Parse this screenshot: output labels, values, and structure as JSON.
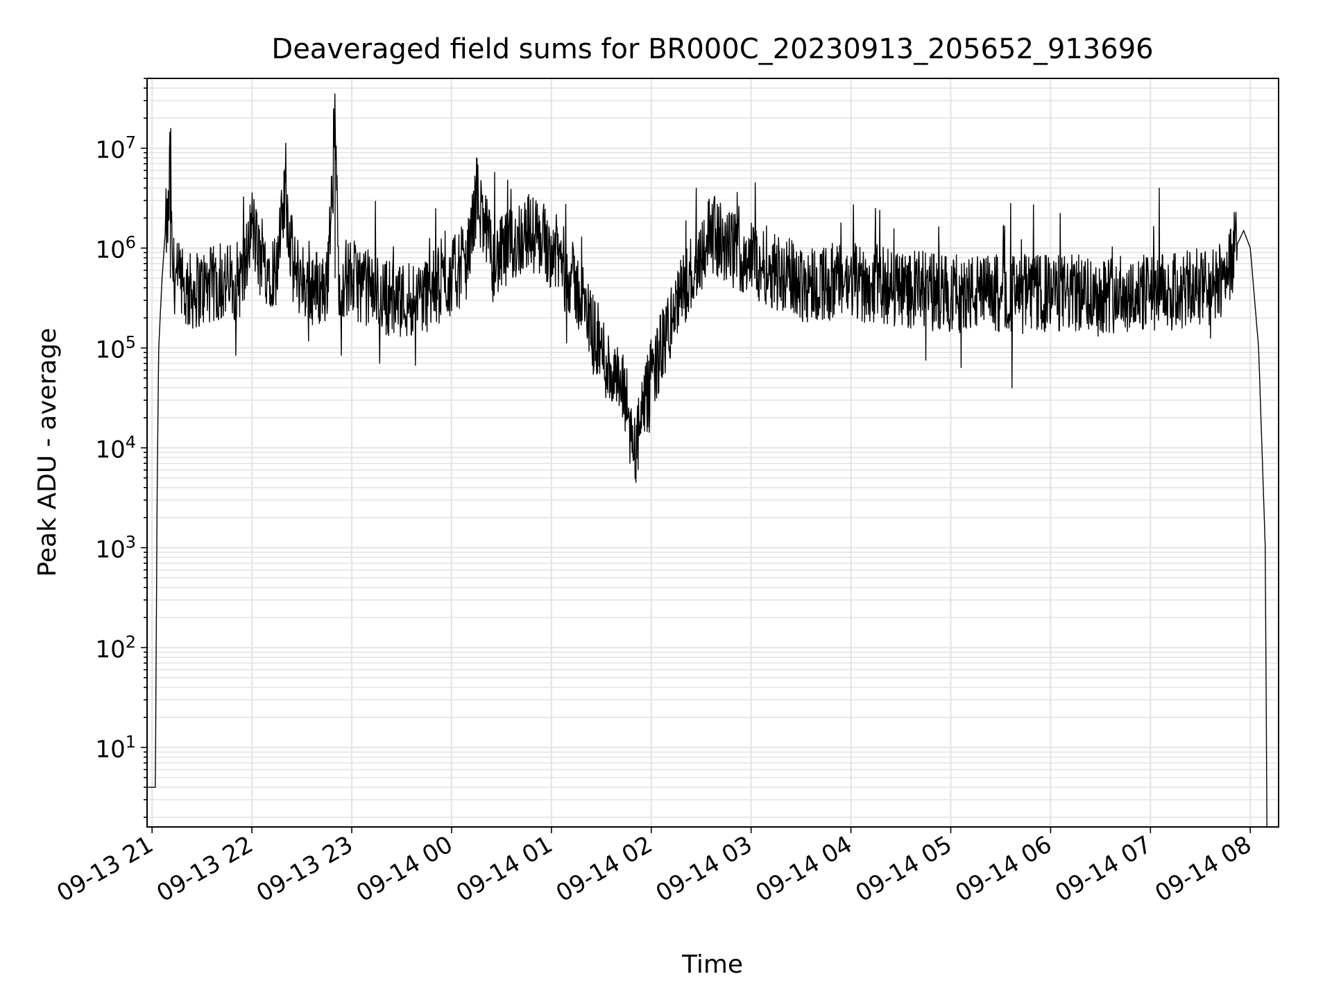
{
  "chart_data": {
    "type": "line",
    "title": "Deaveraged field sums for BR000C_20230913_205652_913696",
    "xlabel": "Time",
    "ylabel": "Peak ADU - average",
    "yscale": "log",
    "ylim": [
      1.6,
      50000000
    ],
    "xlim": [
      "2023-09-13 20:57",
      "2023-09-14 08:17"
    ],
    "grid": true,
    "line_color": "#000000",
    "x_ticks": [
      {
        "time": "2023-09-13 21:00",
        "label": "09-13 21"
      },
      {
        "time": "2023-09-13 22:00",
        "label": "09-13 22"
      },
      {
        "time": "2023-09-13 23:00",
        "label": "09-13 23"
      },
      {
        "time": "2023-09-14 00:00",
        "label": "09-14 00"
      },
      {
        "time": "2023-09-14 01:00",
        "label": "09-14 01"
      },
      {
        "time": "2023-09-14 02:00",
        "label": "09-14 02"
      },
      {
        "time": "2023-09-14 03:00",
        "label": "09-14 03"
      },
      {
        "time": "2023-09-14 04:00",
        "label": "09-14 04"
      },
      {
        "time": "2023-09-14 05:00",
        "label": "09-14 05"
      },
      {
        "time": "2023-09-14 06:00",
        "label": "09-14 06"
      },
      {
        "time": "2023-09-14 07:00",
        "label": "09-14 07"
      },
      {
        "time": "2023-09-14 08:00",
        "label": "09-14 08"
      }
    ],
    "y_ticks": [
      {
        "value": 10,
        "base": "10",
        "exp": "1"
      },
      {
        "value": 100,
        "base": "10",
        "exp": "2"
      },
      {
        "value": 1000,
        "base": "10",
        "exp": "3"
      },
      {
        "value": 10000,
        "base": "10",
        "exp": "4"
      },
      {
        "value": 100000,
        "base": "10",
        "exp": "5"
      },
      {
        "value": 1000000,
        "base": "10",
        "exp": "6"
      },
      {
        "value": 10000000,
        "base": "10",
        "exp": "7"
      }
    ],
    "series": [
      {
        "points": [
          [
            "2023-09-13 20:57",
            4
          ],
          [
            "2023-09-13 21:01",
            4
          ],
          [
            "2023-09-13 21:02",
            4
          ],
          [
            "2023-09-13 21:03",
            3000
          ],
          [
            "2023-09-13 21:04",
            100000
          ],
          [
            "2023-09-13 21:06",
            500000
          ],
          [
            "2023-09-13 21:08",
            1500000
          ],
          [
            "2023-09-13 21:10",
            2000000
          ],
          [
            "2023-09-13 21:11",
            14000000
          ],
          [
            "2023-09-13 21:12",
            600000
          ],
          [
            "2023-09-13 21:20",
            350000
          ],
          [
            "2023-09-13 21:30",
            400000
          ],
          [
            "2023-09-13 21:45",
            450000
          ],
          [
            "2023-09-13 21:55",
            500000
          ],
          [
            "2023-09-13 22:00",
            1800000
          ],
          [
            "2023-09-13 22:05",
            700000
          ],
          [
            "2023-09-13 22:15",
            600000
          ],
          [
            "2023-09-13 22:20",
            3500000
          ],
          [
            "2023-09-13 22:25",
            600000
          ],
          [
            "2023-09-13 22:35",
            400000
          ],
          [
            "2023-09-13 22:45",
            400000
          ],
          [
            "2023-09-13 22:50",
            22000000
          ],
          [
            "2023-09-13 22:52",
            500000
          ],
          [
            "2023-09-13 23:00",
            500000
          ],
          [
            "2023-09-13 23:15",
            350000
          ],
          [
            "2023-09-13 23:30",
            300000
          ],
          [
            "2023-09-13 23:45",
            350000
          ],
          [
            "2023-09-14 00:00",
            500000
          ],
          [
            "2023-09-14 00:10",
            800000
          ],
          [
            "2023-09-14 00:15",
            3500000
          ],
          [
            "2023-09-14 00:25",
            700000
          ],
          [
            "2023-09-14 00:35",
            1000000
          ],
          [
            "2023-09-14 00:45",
            1500000
          ],
          [
            "2023-09-14 00:55",
            1200000
          ],
          [
            "2023-09-14 01:05",
            800000
          ],
          [
            "2023-09-14 01:15",
            400000
          ],
          [
            "2023-09-14 01:25",
            150000
          ],
          [
            "2023-09-14 01:35",
            60000
          ],
          [
            "2023-09-14 01:45",
            30000
          ],
          [
            "2023-09-14 01:50",
            9000
          ],
          [
            "2023-09-14 02:00",
            50000
          ],
          [
            "2023-09-14 02:10",
            150000
          ],
          [
            "2023-09-14 02:20",
            400000
          ],
          [
            "2023-09-14 02:30",
            900000
          ],
          [
            "2023-09-14 02:35",
            1500000
          ],
          [
            "2023-09-14 02:45",
            1000000
          ],
          [
            "2023-09-14 03:00",
            800000
          ],
          [
            "2023-09-14 03:15",
            600000
          ],
          [
            "2023-09-14 03:30",
            450000
          ],
          [
            "2023-09-14 04:00",
            450000
          ],
          [
            "2023-09-14 04:30",
            400000
          ],
          [
            "2023-09-14 05:00",
            350000
          ],
          [
            "2023-09-14 05:30",
            350000
          ],
          [
            "2023-09-14 06:00",
            350000
          ],
          [
            "2023-09-14 06:30",
            350000
          ],
          [
            "2023-09-14 07:00",
            350000
          ],
          [
            "2023-09-14 07:40",
            400000
          ],
          [
            "2023-09-14 07:56",
            1500000
          ],
          [
            "2023-09-14 08:00",
            1000000
          ],
          [
            "2023-09-14 08:05",
            100000
          ],
          [
            "2023-09-14 08:09",
            1000
          ],
          [
            "2023-09-14 08:10",
            1.6
          ]
        ]
      }
    ]
  }
}
